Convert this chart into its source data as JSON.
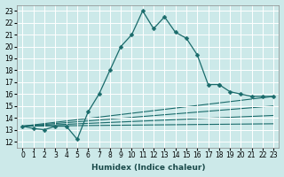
{
  "xlabel": "Humidex (Indice chaleur)",
  "ylabel": "",
  "bg_color": "#cce9e9",
  "grid_color": "#ffffff",
  "line_color": "#1a6b6b",
  "xlim": [
    -0.5,
    23.5
  ],
  "ylim": [
    11.5,
    23.5
  ],
  "xticks": [
    0,
    1,
    2,
    3,
    4,
    5,
    6,
    7,
    8,
    9,
    10,
    11,
    12,
    13,
    14,
    15,
    16,
    17,
    18,
    19,
    20,
    21,
    22,
    23
  ],
  "yticks": [
    12,
    13,
    14,
    15,
    16,
    17,
    18,
    19,
    20,
    21,
    22,
    23
  ],
  "series_main": {
    "x": [
      0,
      1,
      2,
      3,
      4,
      5,
      6,
      7,
      8,
      9,
      10,
      11,
      12,
      13,
      14,
      15,
      16,
      17,
      18
    ],
    "y": [
      13.3,
      13.1,
      13.0,
      13.3,
      13.3,
      12.2,
      14.5,
      16.0,
      18.0,
      20.0,
      21.0,
      23.0,
      21.5,
      22.5,
      21.2,
      20.7,
      19.3,
      16.8,
      16.8
    ]
  },
  "series_tail": {
    "x": [
      18,
      19,
      20,
      21,
      22,
      23
    ],
    "y": [
      16.8,
      16.2,
      16.0,
      15.8,
      15.8,
      15.8
    ]
  },
  "series_lines": [
    {
      "x": [
        0,
        23
      ],
      "y": [
        13.3,
        15.8
      ]
    },
    {
      "x": [
        0,
        23
      ],
      "y": [
        13.3,
        15.0
      ]
    },
    {
      "x": [
        0,
        23
      ],
      "y": [
        13.3,
        14.2
      ]
    },
    {
      "x": [
        0,
        23
      ],
      "y": [
        13.3,
        13.5
      ]
    }
  ],
  "tick_fontsize": 5.5,
  "xlabel_fontsize": 6.5
}
